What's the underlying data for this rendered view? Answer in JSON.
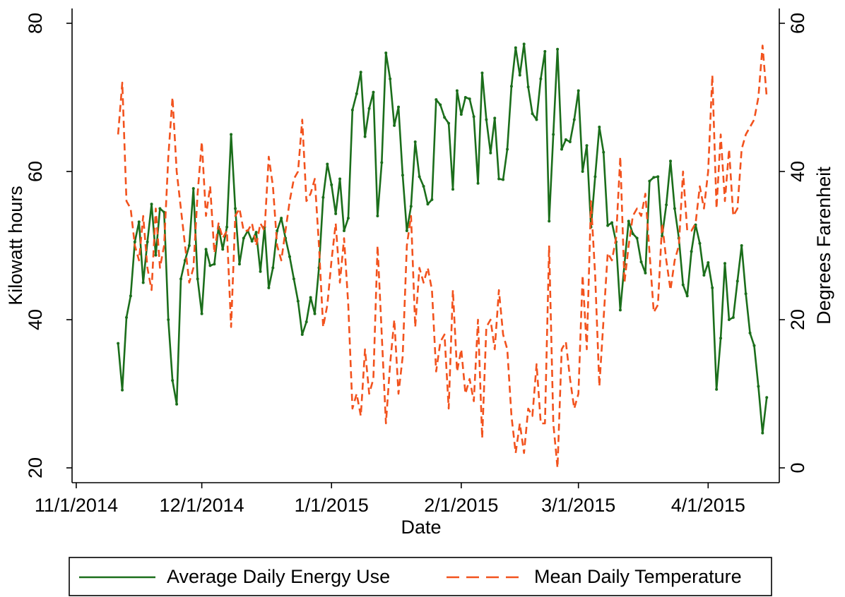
{
  "chart_data": {
    "type": "line",
    "x_label": "Date",
    "y_label": "Kilowatt hours",
    "y2_label": "Degrees Farenheit",
    "x": [
      "2014-11-11",
      "2014-11-12",
      "2014-11-13",
      "2014-11-14",
      "2014-11-15",
      "2014-11-16",
      "2014-11-17",
      "2014-11-18",
      "2014-11-19",
      "2014-11-20",
      "2014-11-21",
      "2014-11-22",
      "2014-11-23",
      "2014-11-24",
      "2014-11-25",
      "2014-11-26",
      "2014-11-27",
      "2014-11-28",
      "2014-11-29",
      "2014-11-30",
      "2014-12-01",
      "2014-12-02",
      "2014-12-03",
      "2014-12-04",
      "2014-12-05",
      "2014-12-06",
      "2014-12-07",
      "2014-12-08",
      "2014-12-09",
      "2014-12-10",
      "2014-12-11",
      "2014-12-12",
      "2014-12-13",
      "2014-12-14",
      "2014-12-15",
      "2014-12-16",
      "2014-12-17",
      "2014-12-18",
      "2014-12-19",
      "2014-12-20",
      "2014-12-21",
      "2014-12-22",
      "2014-12-23",
      "2014-12-24",
      "2014-12-25",
      "2014-12-26",
      "2014-12-27",
      "2014-12-28",
      "2014-12-29",
      "2014-12-30",
      "2014-12-31",
      "2015-01-01",
      "2015-01-02",
      "2015-01-03",
      "2015-01-04",
      "2015-01-05",
      "2015-01-06",
      "2015-01-07",
      "2015-01-08",
      "2015-01-09",
      "2015-01-10",
      "2015-01-11",
      "2015-01-12",
      "2015-01-13",
      "2015-01-14",
      "2015-01-15",
      "2015-01-16",
      "2015-01-17",
      "2015-01-18",
      "2015-01-19",
      "2015-01-20",
      "2015-01-21",
      "2015-01-22",
      "2015-01-23",
      "2015-01-24",
      "2015-01-25",
      "2015-01-26",
      "2015-01-27",
      "2015-01-28",
      "2015-01-29",
      "2015-01-30",
      "2015-01-31",
      "2015-02-01",
      "2015-02-02",
      "2015-02-03",
      "2015-02-04",
      "2015-02-05",
      "2015-02-06",
      "2015-02-07",
      "2015-02-08",
      "2015-02-09",
      "2015-02-10",
      "2015-02-11",
      "2015-02-12",
      "2015-02-13",
      "2015-02-14",
      "2015-02-15",
      "2015-02-16",
      "2015-02-17",
      "2015-02-18",
      "2015-02-19",
      "2015-02-20",
      "2015-02-21",
      "2015-02-22",
      "2015-02-23",
      "2015-02-24",
      "2015-02-25",
      "2015-02-26",
      "2015-02-27",
      "2015-02-28",
      "2015-03-01",
      "2015-03-02",
      "2015-03-03",
      "2015-03-04",
      "2015-03-05",
      "2015-03-06",
      "2015-03-07",
      "2015-03-08",
      "2015-03-09",
      "2015-03-10",
      "2015-03-11",
      "2015-03-12",
      "2015-03-13",
      "2015-03-14",
      "2015-03-15",
      "2015-03-16",
      "2015-03-17",
      "2015-03-18",
      "2015-03-19",
      "2015-03-20",
      "2015-03-21",
      "2015-03-22",
      "2015-03-23",
      "2015-03-24",
      "2015-03-25",
      "2015-03-26",
      "2015-03-27",
      "2015-03-28",
      "2015-03-29",
      "2015-03-30",
      "2015-03-31",
      "2015-04-01",
      "2015-04-02",
      "2015-04-03",
      "2015-04-04",
      "2015-04-05",
      "2015-04-06",
      "2015-04-07",
      "2015-04-08",
      "2015-04-09",
      "2015-04-10",
      "2015-04-11",
      "2015-04-12",
      "2015-04-13",
      "2015-04-14",
      "2015-04-15"
    ],
    "series": [
      {
        "name": "Average Daily Energy Use",
        "color": "#1b6e1b",
        "line_style": "solid",
        "marker": "circle",
        "axis": "y",
        "values": [
          36.8,
          30.5,
          40.3,
          43.2,
          50.5,
          53.2,
          45,
          50.5,
          55.6,
          48.7,
          55,
          54.5,
          40,
          31.8,
          28.6,
          45.5,
          48,
          50,
          57.7,
          45.5,
          40.8,
          49.5,
          47.3,
          47.5,
          52.5,
          49.5,
          52.5,
          65,
          55,
          47.5,
          51,
          52,
          50.6,
          51.8,
          46.5,
          52.5,
          44.3,
          47,
          52,
          53.7,
          51,
          48.5,
          45.5,
          42.5,
          38,
          39.7,
          43,
          40.8,
          47,
          56.5,
          61,
          58.2,
          54.3,
          59,
          52,
          53.7,
          68.3,
          70.5,
          73.4,
          64.7,
          68.5,
          70.7,
          54,
          61.2,
          76,
          72.5,
          66.2,
          68.7,
          59.5,
          52,
          55.3,
          64,
          59.3,
          58,
          55.6,
          56.2,
          69.7,
          69,
          67.3,
          66.5,
          57.6,
          70.9,
          67.7,
          70,
          69.8,
          67.4,
          58.4,
          73.3,
          67,
          62.5,
          67.2,
          59,
          58.9,
          63,
          71.5,
          76.7,
          73,
          77.2,
          71.4,
          67.8,
          67,
          72.5,
          76.2,
          53.3,
          65,
          76.5,
          63,
          64.3,
          64,
          67,
          70.9,
          60,
          63.5,
          52.5,
          59.3,
          66,
          62.6,
          52.7,
          53.1,
          50.5,
          41.3,
          47.5,
          53.3,
          51.6,
          51,
          47.8,
          46.3,
          58.7,
          59.2,
          59.3,
          51.3,
          55.5,
          61.4,
          55,
          51,
          44.7,
          43.2,
          49.2,
          52.8,
          50.3,
          46,
          47.7,
          44.3,
          30.6,
          37.5,
          47.6,
          40,
          40.3,
          45.2,
          50,
          43.5,
          38.2,
          36.5,
          31,
          24.7,
          29.5
        ]
      },
      {
        "name": "Mean Daily Temperature",
        "color": "#f2521d",
        "line_style": "dashed",
        "axis": "y2",
        "values": [
          45,
          52,
          36,
          35,
          30,
          28,
          34,
          27,
          24,
          35,
          27,
          30,
          42,
          50,
          40,
          35,
          30,
          25,
          27,
          37,
          44,
          34,
          38,
          29,
          33,
          31,
          32,
          19,
          34,
          35,
          32,
          32,
          33,
          30,
          33,
          32,
          42,
          38,
          30,
          28,
          32,
          36,
          39,
          40,
          47,
          36,
          37,
          39,
          30,
          19,
          22,
          28,
          33,
          25,
          31,
          22,
          8,
          10,
          7,
          16,
          10,
          12,
          30,
          18,
          6,
          14,
          20,
          10,
          15,
          30,
          34,
          19,
          27,
          25,
          27,
          24,
          13,
          17,
          18,
          8,
          24,
          13,
          16,
          10,
          12,
          9,
          20,
          4,
          19,
          20,
          16,
          24,
          18,
          16,
          7,
          2,
          6,
          2,
          8,
          7,
          14,
          6,
          6,
          30,
          6,
          0,
          16,
          17,
          12,
          8,
          10,
          26,
          16,
          36,
          26,
          11,
          20,
          29,
          28,
          31,
          42,
          25,
          30,
          34,
          35,
          34,
          37,
          29,
          21,
          22,
          33,
          28,
          24,
          28,
          30,
          40,
          32,
          32,
          33,
          38,
          35,
          40,
          53,
          35,
          45,
          36,
          43,
          34,
          35,
          43,
          45,
          46,
          47,
          50,
          57,
          50
        ]
      }
    ],
    "xlim": [
      "2014-10-31",
      "2015-04-18"
    ],
    "xticks": [
      {
        "value": "2014-11-01",
        "label": "11/1/2014"
      },
      {
        "value": "2014-12-01",
        "label": "12/1/2014"
      },
      {
        "value": "2015-01-01",
        "label": "1/1/2015"
      },
      {
        "value": "2015-02-01",
        "label": "2/1/2015"
      },
      {
        "value": "2015-03-01",
        "label": "3/1/2015"
      },
      {
        "value": "2015-04-01",
        "label": "4/1/2015"
      }
    ],
    "ylim": [
      18,
      82
    ],
    "yticks": [
      20,
      40,
      60,
      80
    ],
    "y2lim": [
      -2,
      62
    ],
    "y2ticks": [
      0,
      20,
      40,
      60
    ],
    "grid": false,
    "legend": "bottom"
  }
}
